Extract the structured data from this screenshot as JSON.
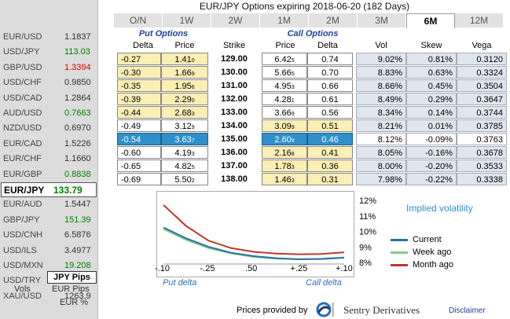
{
  "sidebar": {
    "pairs": [
      {
        "symbol": "EUR/USD",
        "value": "1.1837",
        "trend": "neutral"
      },
      {
        "symbol": "USD/JPY",
        "value": "113.03",
        "trend": "up"
      },
      {
        "symbol": "GBP/USD",
        "value": "1.3394",
        "trend": "down"
      },
      {
        "symbol": "USD/CHF",
        "value": "0.9850",
        "trend": "neutral"
      },
      {
        "symbol": "USD/CAD",
        "value": "1.2864",
        "trend": "neutral"
      },
      {
        "symbol": "AUD/USD",
        "value": "0.7663",
        "trend": "up"
      },
      {
        "symbol": "NZD/USD",
        "value": "0.6970",
        "trend": "neutral"
      },
      {
        "symbol": "EUR/CAD",
        "value": "1.5226",
        "trend": "neutral"
      },
      {
        "symbol": "EUR/CHF",
        "value": "1.1660",
        "trend": "neutral"
      },
      {
        "symbol": "EUR/GBP",
        "value": "0.8838",
        "trend": "up"
      },
      {
        "symbol": "EUR/JPY",
        "value": "133.79",
        "trend": "up",
        "selected": true
      },
      {
        "symbol": "EUR/AUD",
        "value": "1.5447",
        "trend": "neutral"
      },
      {
        "symbol": "GBP/JPY",
        "value": "151.39",
        "trend": "up"
      },
      {
        "symbol": "USD/CNH",
        "value": "6.5876",
        "trend": "neutral"
      },
      {
        "symbol": "USD/ILS",
        "value": "3.4977",
        "trend": "neutral"
      },
      {
        "symbol": "USD/MXN",
        "value": "19.208",
        "trend": "up"
      },
      {
        "symbol": "USD/TRY",
        "value": "3.8395",
        "trend": "down"
      },
      {
        "symbol": "XAU/USD",
        "value": "1263.9",
        "trend": "neutral"
      }
    ],
    "jpy_pips": "JPY Pips",
    "vols": "Vols",
    "eur_pips": "EUR Pips",
    "eur_pct": "EUR %"
  },
  "header": {
    "title": "EUR/JPY Options expiring 2018-06-20 (182 Days)"
  },
  "tabs": [
    {
      "label": "O/N",
      "active": false
    },
    {
      "label": "1W",
      "active": false
    },
    {
      "label": "2W",
      "active": false
    },
    {
      "label": "1M",
      "active": false
    },
    {
      "label": "2M",
      "active": false
    },
    {
      "label": "3M",
      "active": false
    },
    {
      "label": "6M",
      "active": true
    },
    {
      "label": "12M",
      "active": false
    }
  ],
  "table": {
    "put_group": "Put Options",
    "call_group": "Call Options",
    "columns": {
      "put_delta": "Delta",
      "put_price": "Price",
      "strike": "Strike",
      "call_price": "Price",
      "call_delta": "Delta",
      "vol": "Vol",
      "skew": "Skew",
      "vega": "Vega"
    },
    "rows": [
      {
        "put_delta": "-0.27",
        "put_price": "1.41",
        "put_sub": "0",
        "strike": "129.00",
        "call_price": "6.42",
        "call_sub": "5",
        "call_delta": "0.74",
        "vol": "9.02%",
        "skew": "0.81%",
        "vega": "0.3120",
        "put_style": "put",
        "call_style": "wh"
      },
      {
        "put_delta": "-0.30",
        "put_price": "1.66",
        "put_sub": "9",
        "strike": "130.00",
        "call_price": "5.66",
        "call_sub": "5",
        "call_delta": "0.70",
        "vol": "8.83%",
        "skew": "0.63%",
        "vega": "0.3324",
        "put_style": "put",
        "call_style": "wh"
      },
      {
        "put_delta": "-0.35",
        "put_price": "1.95",
        "put_sub": "6",
        "strike": "131.00",
        "call_price": "4.95",
        "call_sub": "3",
        "call_delta": "0.66",
        "vol": "8.66%",
        "skew": "0.45%",
        "vega": "0.3504",
        "put_style": "put",
        "call_style": "wh"
      },
      {
        "put_delta": "-0.39",
        "put_price": "2.29",
        "put_sub": "0",
        "strike": "132.00",
        "call_price": "4.28",
        "call_sub": "1",
        "call_delta": "0.61",
        "vol": "8.49%",
        "skew": "0.29%",
        "vega": "0.3647",
        "put_style": "put",
        "call_style": "wh"
      },
      {
        "put_delta": "-0.44",
        "put_price": "2.68",
        "put_sub": "3",
        "strike": "133.00",
        "call_price": "3.66",
        "call_sub": "9",
        "call_delta": "0.56",
        "vol": "8.34%",
        "skew": "0.14%",
        "vega": "0.3744",
        "put_style": "put",
        "call_style": "wh"
      },
      {
        "put_delta": "-0.49",
        "put_price": "3.12",
        "put_sub": "9",
        "strike": "134.00",
        "call_price": "3.09",
        "call_sub": "9",
        "call_delta": "0.51",
        "vol": "8.21%",
        "skew": "0.01%",
        "vega": "0.3785",
        "put_style": "wh",
        "call_style": "yl"
      },
      {
        "put_delta": "-0.54",
        "put_price": "3.63",
        "put_sub": "7",
        "strike": "135.00",
        "call_price": "2.60",
        "call_sub": "9",
        "call_delta": "0.46",
        "vol": "8.12%",
        "skew": "-0.09%",
        "vega": "0.3763",
        "put_style": "sel",
        "call_style": "sel"
      },
      {
        "put_delta": "-0.60",
        "put_price": "4.19",
        "put_sub": "3",
        "strike": "136.00",
        "call_price": "2.16",
        "call_sub": "8",
        "call_delta": "0.41",
        "vol": "8.05%",
        "skew": "-0.16%",
        "vega": "0.3678",
        "put_style": "wh",
        "call_style": "yl"
      },
      {
        "put_delta": "-0.65",
        "put_price": "4.82",
        "put_sub": "5",
        "strike": "137.00",
        "call_price": "1.78",
        "call_sub": "3",
        "call_delta": "0.36",
        "vol": "8.00%",
        "skew": "-0.20%",
        "vega": "0.3533",
        "put_style": "wh",
        "call_style": "yl"
      },
      {
        "put_delta": "-0.69",
        "put_price": "5.50",
        "put_sub": "2",
        "strike": "138.00",
        "call_price": "1.46",
        "call_sub": "3",
        "call_delta": "0.31",
        "vol": "7.98%",
        "skew": "-0.22%",
        "vega": "0.3338",
        "put_style": "wh",
        "call_style": "yl"
      }
    ]
  },
  "chart_data": {
    "type": "line",
    "title": "Implied volatility",
    "xlabel_left": "Put delta",
    "xlabel_right": "Call delta",
    "x_ticks": [
      "-.10",
      "-.25",
      ".50",
      "+.25",
      "+.10"
    ],
    "y_ticks": [
      "12%",
      "11%",
      "10%",
      "9%",
      "8%"
    ],
    "ylim": [
      8,
      12
    ],
    "x": [
      0,
      1,
      2,
      3,
      4,
      5,
      6,
      7,
      8
    ],
    "series": [
      {
        "name": "Current",
        "color": "#2a6fb0",
        "values": [
          10.05,
          9.35,
          8.8,
          8.42,
          8.2,
          8.07,
          8.0,
          8.02,
          8.1
        ]
      },
      {
        "name": "Week ago",
        "color": "#7fd07f",
        "values": [
          9.95,
          9.25,
          8.72,
          8.37,
          8.15,
          8.04,
          8.0,
          8.04,
          8.12
        ]
      },
      {
        "name": "Month ago",
        "color": "#c0392b",
        "values": [
          11.5,
          10.15,
          9.2,
          8.72,
          8.48,
          8.37,
          8.32,
          8.34,
          8.45
        ]
      }
    ]
  },
  "footer": {
    "provided_by": "Prices provided by",
    "brand": "Sentry Derivatives",
    "disclaimer": "Disclaimer"
  }
}
